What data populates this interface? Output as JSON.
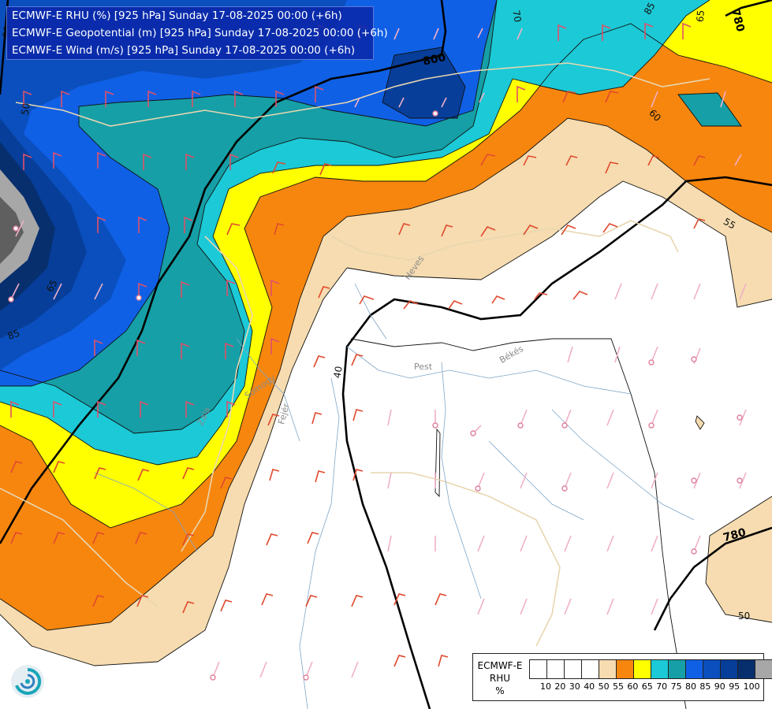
{
  "header": {
    "lines": [
      "ECMWF-E RHU (%) [925 hPa] Sunday 17-08-2025 00:00 (+6h)",
      "ECMWF-E Geopotential (m) [925 hPa] Sunday 17-08-2025 00:00 (+6h)",
      "ECMWF-E Wind (m/s) [925 hPa] Sunday 17-08-2025 00:00 (+6h)"
    ]
  },
  "legend": {
    "title_lines": [
      "ECMWF-E",
      "RHU",
      "%"
    ],
    "ticks": [
      "10",
      "20",
      "30",
      "40",
      "50",
      "55",
      "60",
      "65",
      "70",
      "75",
      "80",
      "85",
      "90",
      "95",
      "100"
    ],
    "colors": [
      "#ffffff",
      "#ffffff",
      "#ffffff",
      "#ffffff",
      "#f6dcb0",
      "#f7860e",
      "#ffff00",
      "#1cc9d6",
      "#169fa6",
      "#1060e6",
      "#0a4fbd",
      "#073e99",
      "#072f6e",
      "#a7a7a7",
      "#5f5f5f"
    ]
  },
  "map": {
    "place_labels": [
      "Pest",
      "Békés",
      "Heves",
      "Fejér",
      "Somogy",
      "Zala"
    ],
    "contour_labels": {
      "geopotential": [
        "800",
        "780",
        "780"
      ],
      "rhu": [
        "70",
        "85",
        "65",
        "60",
        "55",
        "40",
        "50",
        "65",
        "90",
        "85",
        "50"
      ]
    }
  }
}
